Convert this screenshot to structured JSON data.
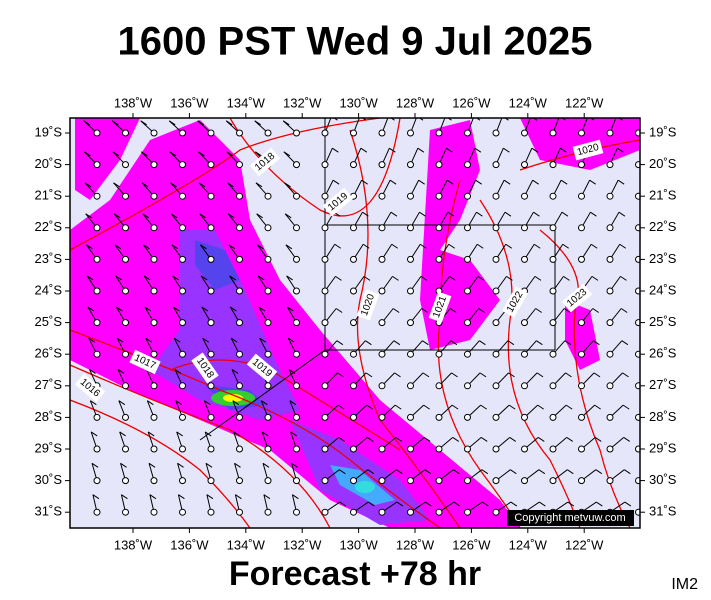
{
  "header": {
    "title": "1600 PST Wed 9 Jul 2025"
  },
  "map": {
    "longitude_labels": [
      "138˚W",
      "136˚W",
      "134˚W",
      "132˚W",
      "130˚W",
      "128˚W",
      "126˚W",
      "124˚W",
      "122˚W"
    ],
    "latitude_labels": [
      "19˚S",
      "20˚S",
      "21˚S",
      "22˚S",
      "23˚S",
      "24˚S",
      "25˚S",
      "26˚S",
      "27˚S",
      "28˚S",
      "29˚S",
      "30˚S",
      "31˚S"
    ],
    "isobar_labels": [
      1018,
      1019,
      1020,
      1021,
      1022,
      1023,
      1020,
      1017,
      1018,
      1019,
      1016
    ],
    "copyright": "Copyright metvuw.com"
  },
  "footer": {
    "forecast": "Forecast +78 hr",
    "image_id": "IM2"
  }
}
